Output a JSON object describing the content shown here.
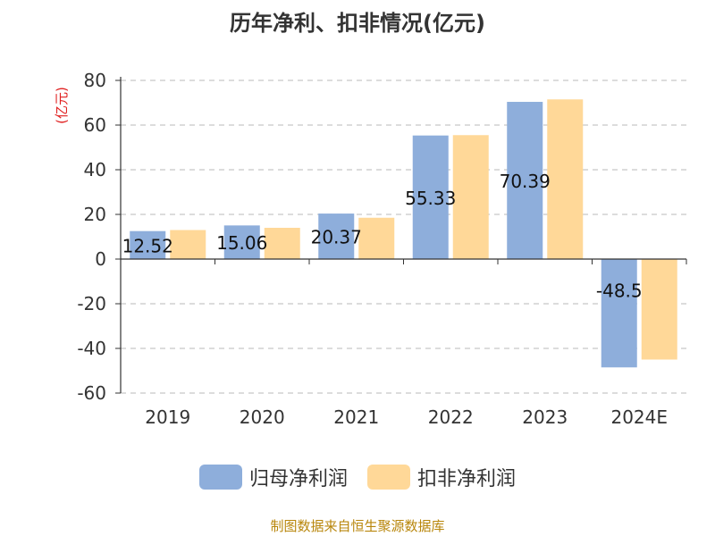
{
  "chart_data": {
    "type": "bar",
    "title": "历年净利、扣非情况(亿元)",
    "ylabel": "(亿元)",
    "xlabel": "",
    "categories": [
      "2019",
      "2020",
      "2021",
      "2022",
      "2023",
      "2024E"
    ],
    "ylim": [
      -60,
      80
    ],
    "yticks": [
      80,
      60,
      40,
      20,
      0,
      -20,
      -40,
      -60
    ],
    "grid": true,
    "series": [
      {
        "name": "归母净利润",
        "color": "#8eaedb",
        "values": [
          12.52,
          15.06,
          20.37,
          55.33,
          70.39,
          -48.5
        ],
        "labels": [
          "12.52",
          "15.06",
          "20.37",
          "55.33",
          "70.39",
          "-48.5"
        ]
      },
      {
        "name": "扣非净利润",
        "color": "#ffd898",
        "values": [
          13.0,
          14.0,
          18.5,
          55.5,
          71.5,
          -45.0
        ]
      }
    ],
    "legend_position": "bottom"
  },
  "source": "制图数据来自恒生聚源数据库"
}
